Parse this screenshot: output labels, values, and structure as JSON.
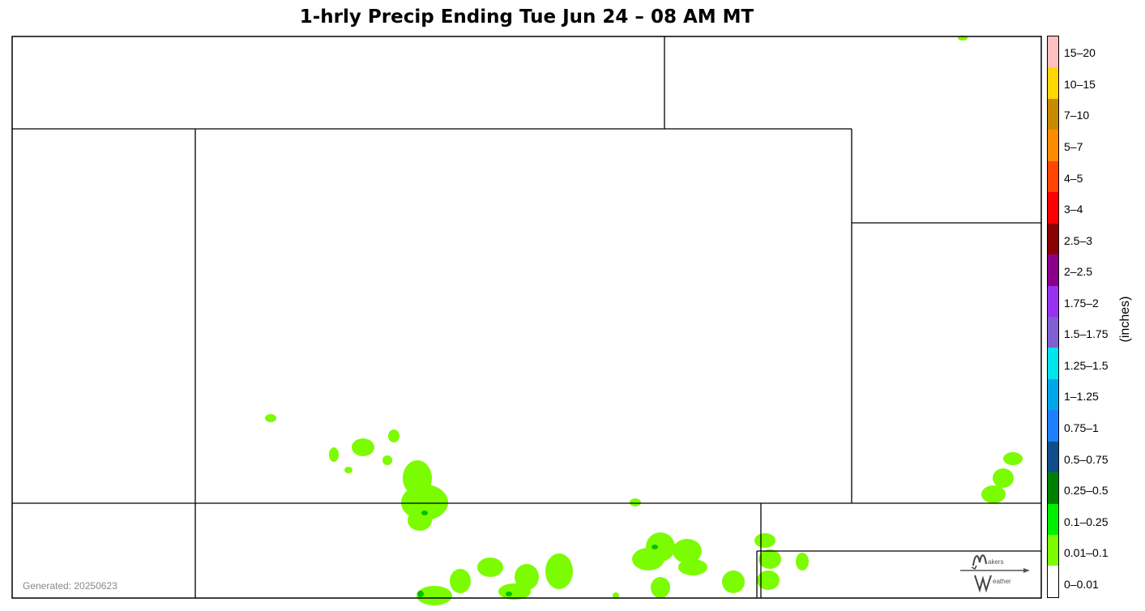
{
  "title": "1-hrly Precip Ending Tue Jun 24 – 08 AM MT",
  "generated_label": "Generated: 20250623",
  "unit_label": "(inches)",
  "colors": {
    "light_precip": "#7cfc00",
    "moderate_precip": "#00c000",
    "boundary": "#000000"
  },
  "legend": {
    "bins": [
      {
        "label": "15–20",
        "color": "#ffc0c0"
      },
      {
        "label": "10–15",
        "color": "#ffd700"
      },
      {
        "label": "7–10",
        "color": "#c88a00"
      },
      {
        "label": "5–7",
        "color": "#ff8c00"
      },
      {
        "label": "4–5",
        "color": "#ff4500"
      },
      {
        "label": "3–4",
        "color": "#ff0000"
      },
      {
        "label": "2.5–3",
        "color": "#8b0000"
      },
      {
        "label": "2–2.5",
        "color": "#8b008b"
      },
      {
        "label": "1.75–2",
        "color": "#9932f0"
      },
      {
        "label": "1.5–1.75",
        "color": "#8060d0"
      },
      {
        "label": "1.25–1.5",
        "color": "#00e5ee"
      },
      {
        "label": "1–1.25",
        "color": "#00a8e8"
      },
      {
        "label": "0.75–1",
        "color": "#1e80ff"
      },
      {
        "label": "0.5–0.75",
        "color": "#104e8b"
      },
      {
        "label": "0.25–0.5",
        "color": "#008000"
      },
      {
        "label": "0.1–0.25",
        "color": "#00ee00"
      },
      {
        "label": "0.01–0.1",
        "color": "#7cfc00"
      },
      {
        "label": "0–0.01",
        "color": "#ffffff"
      }
    ]
  },
  "logo": {
    "line1": "akers",
    "line2": "eather",
    "icon": "makers-weather-logo"
  }
}
